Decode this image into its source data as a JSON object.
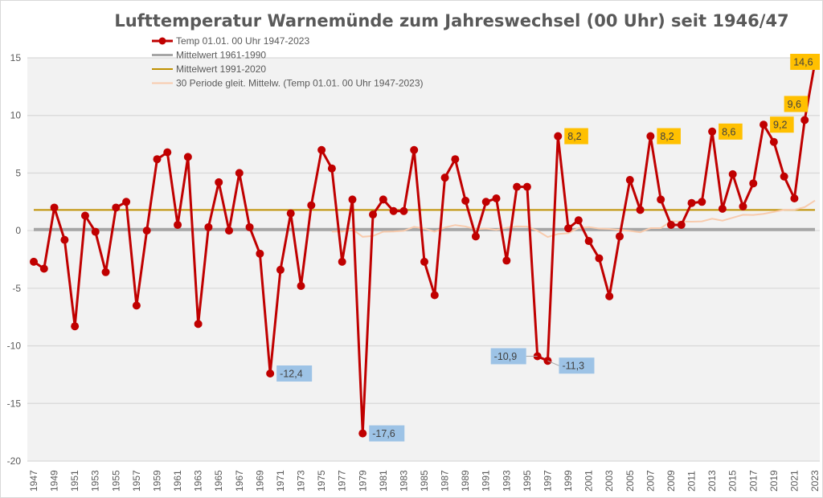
{
  "chart_data": {
    "type": "line",
    "title": "Lufttemperatur Warnemünde zum Jahreswechsel (00 Uhr) seit 1946/47",
    "xlabel": "",
    "ylabel": "",
    "ylim": [
      -20,
      15
    ],
    "yticks": [
      15,
      10,
      5,
      0,
      -5,
      -10,
      -15,
      -20
    ],
    "grid": true,
    "legend_position": "top-left",
    "x_start": 1947,
    "x_end": 2023,
    "x_tick_step": 2,
    "series": [
      {
        "name": "Temp 01.01. 00 Uhr 1947-2023",
        "color": "#c00000",
        "values": [
          -2.7,
          -3.3,
          2.0,
          -0.8,
          -8.3,
          1.3,
          -0.1,
          -3.6,
          2.0,
          2.5,
          -6.5,
          0.0,
          6.2,
          6.8,
          0.5,
          6.4,
          -8.1,
          0.3,
          4.2,
          0.0,
          5.0,
          0.3,
          -2.0,
          -12.4,
          -3.4,
          1.5,
          -4.8,
          2.2,
          7.0,
          5.4,
          -2.7,
          2.7,
          -17.6,
          1.4,
          2.7,
          1.7,
          1.7,
          7.0,
          -2.7,
          -5.6,
          4.6,
          6.2,
          2.6,
          -0.5,
          2.5,
          2.8,
          -2.6,
          3.8,
          3.8,
          -10.9,
          -11.3,
          8.2,
          0.2,
          0.9,
          -0.9,
          -2.4,
          -5.7,
          -0.5,
          4.4,
          1.8,
          8.2,
          2.7,
          0.5,
          0.5,
          2.4,
          2.5,
          8.6,
          1.9,
          4.9,
          2.1,
          4.1,
          9.2,
          7.7,
          4.7,
          2.8,
          9.6,
          14.6
        ]
      },
      {
        "name": "Mittelwert 1961-1990",
        "color": "#a6a6a6",
        "value": 0.1
      },
      {
        "name": "Mittelwert 1991-2020",
        "color": "#bf9000",
        "value": 1.8
      },
      {
        "name": "30 Periode gleit. Mittelw. (Temp 01.01. 00 Uhr 1947-2023)",
        "color": "#f8cbad",
        "period": 30
      }
    ],
    "annotations": [
      {
        "year": 1970,
        "text": "-12,4",
        "color": "#9dc3e6",
        "side": "right"
      },
      {
        "year": 1979,
        "text": "-17,6",
        "color": "#9dc3e6",
        "side": "right"
      },
      {
        "year": 1996,
        "text": "-10,9",
        "color": "#9dc3e6",
        "side": "left"
      },
      {
        "year": 1997,
        "text": "-11,3",
        "color": "#9dc3e6",
        "side": "right"
      },
      {
        "year": 1998,
        "text": "8,2",
        "color": "#ffc000",
        "side": "right"
      },
      {
        "year": 2007,
        "text": "8,2",
        "color": "#ffc000",
        "side": "right"
      },
      {
        "year": 2013,
        "text": "8,6",
        "color": "#ffc000",
        "side": "right"
      },
      {
        "year": 2018,
        "text": "9,2",
        "color": "#ffc000",
        "side": "right"
      },
      {
        "year": 2022,
        "text": "9,6",
        "color": "#ffc000",
        "side": "above"
      },
      {
        "year": 2023,
        "text": "14,6",
        "color": "#ffc000",
        "side": "above"
      }
    ]
  }
}
